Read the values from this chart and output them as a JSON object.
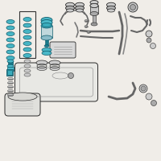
{
  "bg_color": "#f0ede8",
  "line_color": "#2a2a2a",
  "teal_dark": "#0d5a6a",
  "teal_mid": "#1a7a8a",
  "teal_light": "#3aacbc",
  "teal_fill": "#4ab8c8",
  "gray_line": "#555555",
  "gray_fill": "#cccccc",
  "gray_part": "#aaaaaa",
  "box_color": "#444444"
}
